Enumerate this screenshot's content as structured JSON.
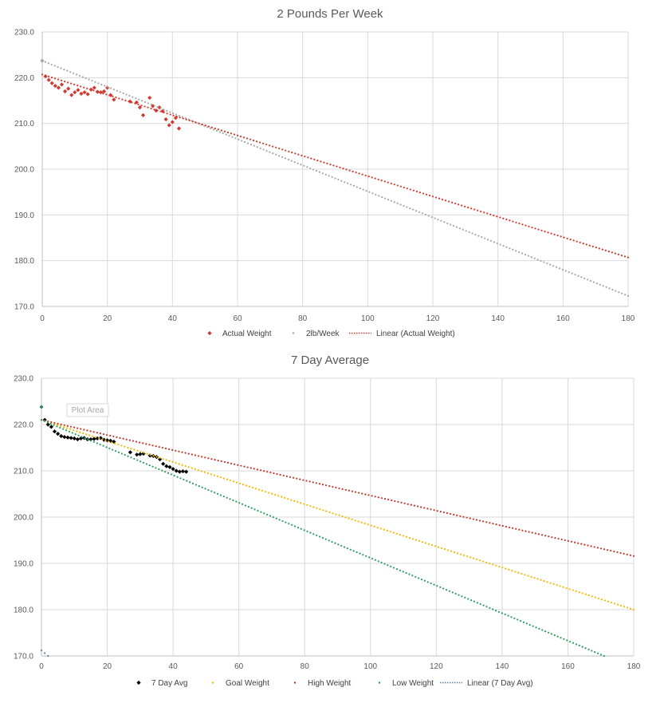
{
  "chart_data": [
    {
      "type": "scatter",
      "title": "2 Pounds Per Week",
      "xlabel": "",
      "ylabel": "",
      "xlim": [
        0,
        180
      ],
      "ylim": [
        170,
        230
      ],
      "xticks": [
        0,
        20,
        40,
        60,
        80,
        100,
        120,
        140,
        160,
        180
      ],
      "yticks": [
        170,
        180,
        190,
        200,
        210,
        220,
        230
      ],
      "ytick_format": "one-decimal",
      "grid": true,
      "legend_position": "bottom",
      "series": [
        {
          "name": "Actual Weight",
          "kind": "markers",
          "marker": "diamond",
          "color": "#d03a2f",
          "x": [
            1,
            2,
            3,
            4,
            5,
            6,
            7,
            8,
            9,
            10,
            11,
            12,
            13,
            14,
            15,
            16,
            17,
            18,
            19,
            20,
            21,
            22,
            27,
            29,
            30,
            31,
            33,
            34,
            35,
            36,
            37,
            38,
            39,
            40,
            41,
            42
          ],
          "y": [
            220.3,
            219.5,
            218.8,
            218.2,
            217.8,
            218.5,
            217,
            217.6,
            216.2,
            216.8,
            217.3,
            216.5,
            216.8,
            216.4,
            217.4,
            217.8,
            216.9,
            216.8,
            217,
            217.8,
            216.2,
            215.2,
            214.8,
            214.6,
            213.5,
            211.8,
            215.6,
            213.8,
            212.8,
            213.5,
            212.7,
            210.9,
            209.6,
            210.3,
            211.2,
            208.9
          ]
        },
        {
          "name": "2lb/Week",
          "kind": "dotted-line",
          "marker": "circle",
          "color": "#a6a6a6",
          "x": [
            0,
            180
          ],
          "y": [
            223.7,
            172.3
          ]
        },
        {
          "name": "Linear (Actual Weight)",
          "kind": "dotted-line",
          "marker": "line",
          "color": "#d03a2f",
          "x": [
            0,
            180
          ],
          "y": [
            220.7,
            180.7
          ]
        }
      ],
      "start_point": {
        "x": 0,
        "y": 223.7,
        "color": "#a6a6a6"
      }
    },
    {
      "type": "scatter",
      "title": "7 Day Average",
      "xlabel": "",
      "ylabel": "",
      "xlim": [
        0,
        180
      ],
      "ylim": [
        170,
        230
      ],
      "xticks": [
        0,
        20,
        40,
        60,
        80,
        100,
        120,
        140,
        160,
        180
      ],
      "yticks": [
        170,
        180,
        190,
        200,
        210,
        220,
        230
      ],
      "ytick_format": "one-decimal",
      "grid": true,
      "legend_position": "bottom",
      "tooltip": "Plot Area",
      "series": [
        {
          "name": "7 Day Avg",
          "kind": "markers",
          "marker": "diamond",
          "color": "#000000",
          "x": [
            1,
            2,
            3,
            4,
            5,
            6,
            7,
            8,
            9,
            10,
            11,
            12,
            13,
            14,
            15,
            16,
            17,
            18,
            19,
            20,
            21,
            22,
            27,
            29,
            30,
            31,
            33,
            34,
            35,
            36,
            37,
            38,
            39,
            40,
            41,
            42,
            43,
            44
          ],
          "y": [
            221,
            220,
            219.5,
            218.5,
            218,
            217.5,
            217.3,
            217.2,
            217.1,
            217,
            216.8,
            217,
            217.1,
            216.8,
            216.8,
            216.9,
            217,
            217.1,
            216.7,
            216.6,
            216.5,
            216.3,
            214,
            213.5,
            213.6,
            213.7,
            213.3,
            213.2,
            213,
            212.5,
            211.5,
            211,
            210.8,
            210.4,
            210,
            209.8,
            209.9,
            209.8
          ]
        },
        {
          "name": "Goal Weight",
          "kind": "dotted-line",
          "marker": "circle",
          "color": "#f5b800",
          "x": [
            0,
            180
          ],
          "y": [
            221,
            180
          ]
        },
        {
          "name": "High Weight",
          "kind": "dotted-line",
          "marker": "circle",
          "color": "#c0392b",
          "x": [
            0,
            180
          ],
          "y": [
            221,
            191.6
          ]
        },
        {
          "name": "Low Weight",
          "kind": "dotted-line",
          "marker": "circle",
          "color": "#2e9e5f",
          "x": [
            0,
            171
          ],
          "y": [
            221,
            170
          ]
        },
        {
          "name": "Linear (7 Day Avg)",
          "kind": "dotted-line",
          "marker": "line",
          "color": "#5b7fa6",
          "x": [
            0,
            2
          ],
          "y": [
            171.2,
            170
          ]
        }
      ],
      "start_point": {
        "x": 0,
        "y": 223.8,
        "color": "#2e8b57"
      }
    }
  ]
}
